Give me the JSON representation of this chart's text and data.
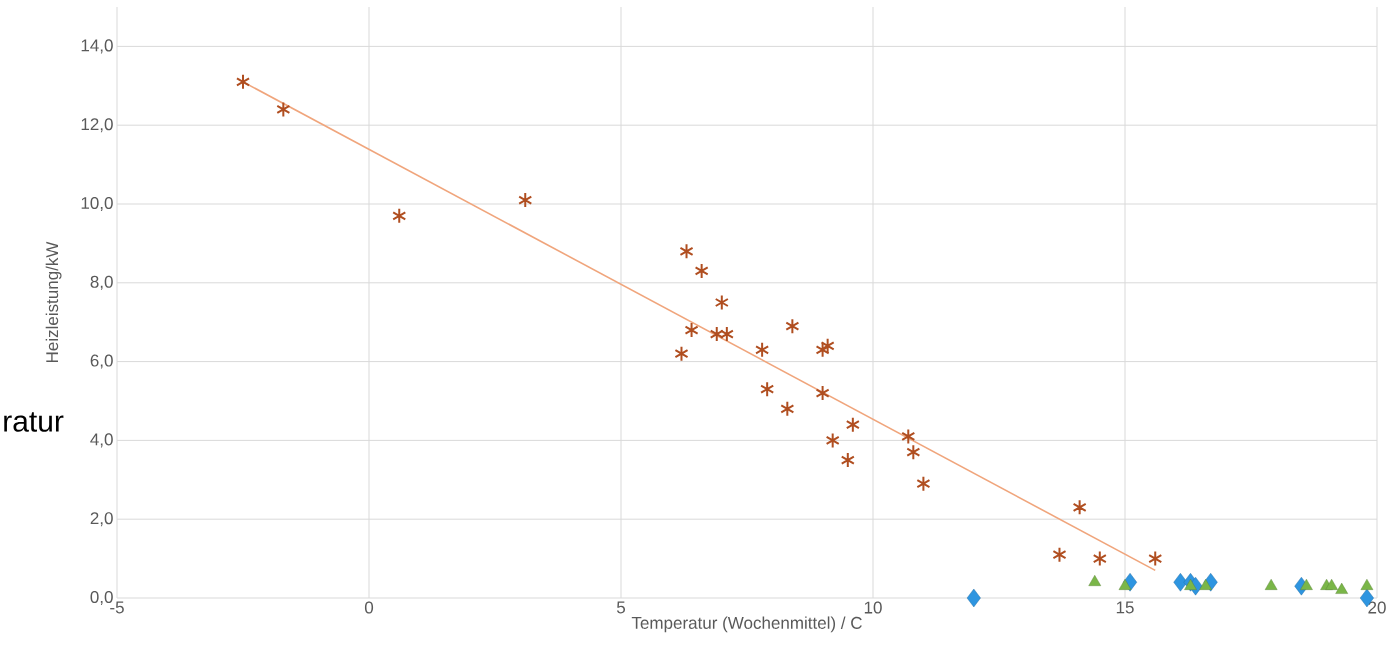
{
  "chart_data": {
    "type": "scatter",
    "xlabel": "Temperatur (Wochenmittel) / C",
    "ylabel": "Heizleistung/kW",
    "annotations": [
      "ratur"
    ],
    "xlim": [
      -5,
      20
    ],
    "ylim": [
      0,
      15
    ],
    "xticks": [
      -5,
      0,
      5,
      10,
      15,
      20
    ],
    "yticks": [
      {
        "value": 0,
        "label": "0,0"
      },
      {
        "value": 2,
        "label": "2,0"
      },
      {
        "value": 4,
        "label": "4,0"
      },
      {
        "value": 6,
        "label": "6,0"
      },
      {
        "value": 8,
        "label": "8,0"
      },
      {
        "value": 10,
        "label": "10,0"
      },
      {
        "value": 12,
        "label": "12,0"
      },
      {
        "value": 14,
        "label": "14,0"
      }
    ],
    "grid": true,
    "series": [
      {
        "marker": "cross",
        "color": "#b04e20",
        "x": [
          -2.5,
          -1.7,
          0.6,
          3.1,
          6.3,
          6.6,
          7.0,
          6.4,
          6.9,
          7.1,
          6.2,
          7.8,
          8.4,
          9.0,
          9.1,
          7.9,
          8.3,
          9.0,
          9.6,
          9.2,
          9.5,
          10.7,
          10.8,
          11.0,
          14.1,
          13.7,
          14.5,
          15.6
        ],
        "values": [
          13.1,
          12.4,
          9.7,
          10.1,
          8.8,
          8.3,
          7.5,
          6.8,
          6.7,
          6.7,
          6.2,
          6.3,
          6.9,
          6.3,
          6.4,
          5.3,
          4.8,
          5.2,
          4.4,
          4.0,
          3.5,
          4.1,
          3.7,
          2.9,
          2.3,
          1.1,
          1.0,
          1.0
        ]
      },
      {
        "type": "line",
        "marker": "none",
        "color": "#f0a57c",
        "x": [
          -2.5,
          15.6
        ],
        "values": [
          13.1,
          0.7
        ]
      },
      {
        "marker": "diamond",
        "color": "#2e95e0",
        "x": [
          12.0,
          15.1,
          16.1,
          16.3,
          16.4,
          16.7,
          18.5,
          19.8
        ],
        "values": [
          0.0,
          0.4,
          0.4,
          0.4,
          0.3,
          0.4,
          0.3,
          0.0
        ]
      },
      {
        "marker": "triangle",
        "color": "#7ab648",
        "x": [
          14.4,
          15.0,
          16.3,
          16.6,
          17.9,
          18.6,
          19.0,
          19.1,
          19.3,
          19.8
        ],
        "values": [
          0.4,
          0.3,
          0.3,
          0.3,
          0.3,
          0.3,
          0.3,
          0.3,
          0.2,
          0.3
        ]
      }
    ]
  }
}
